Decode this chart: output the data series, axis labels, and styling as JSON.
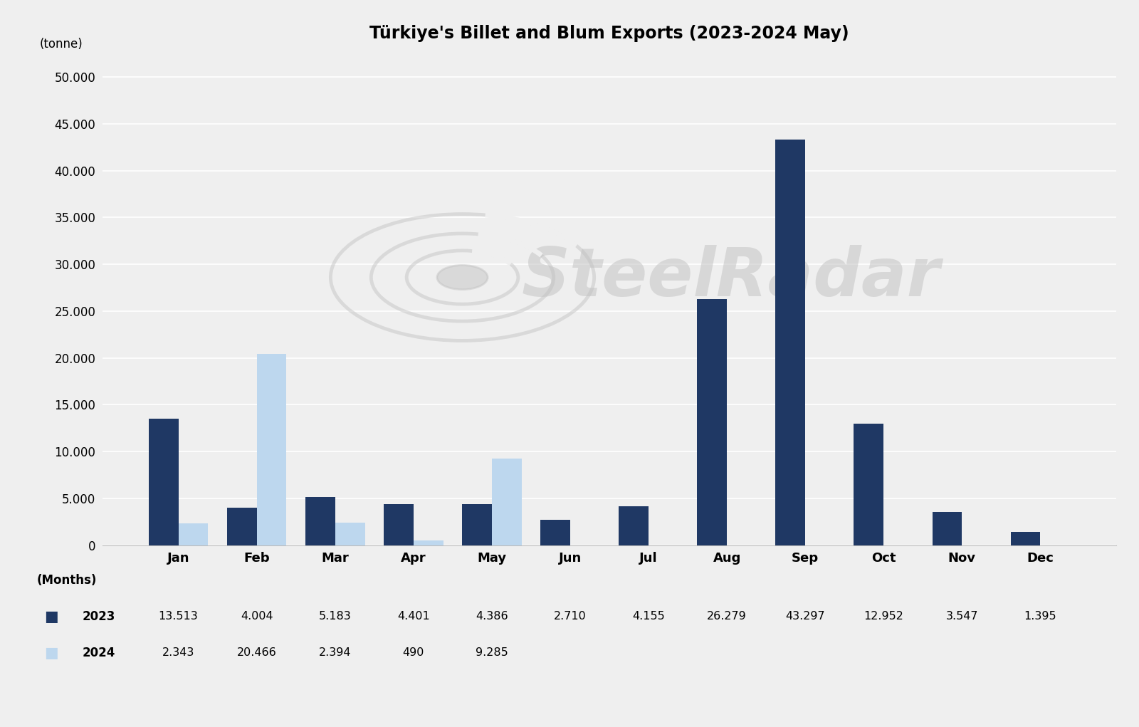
{
  "title": "Türkiye's Billet and Blum Exports (2023-2024 May)",
  "ylabel": "(tonne)",
  "xlabel": "(Months)",
  "months": [
    "Jan",
    "Feb",
    "Mar",
    "Apr",
    "May",
    "Jun",
    "Jul",
    "Aug",
    "Sep",
    "Oct",
    "Nov",
    "Dec"
  ],
  "data_2023": [
    13513,
    4004,
    5183,
    4401,
    4386,
    2710,
    4155,
    26279,
    43297,
    12952,
    3547,
    1395
  ],
  "data_2024": [
    2343,
    20466,
    2394,
    490,
    9285,
    0,
    0,
    0,
    0,
    0,
    0,
    0
  ],
  "color_2023": "#1F3864",
  "color_2024": "#BDD7EE",
  "yticks": [
    0,
    5000,
    10000,
    15000,
    20000,
    25000,
    30000,
    35000,
    40000,
    45000,
    50000
  ],
  "ytick_labels": [
    "0",
    "5.000",
    "10.000",
    "15.000",
    "20.000",
    "25.000",
    "30.000",
    "35.000",
    "40.000",
    "45.000",
    "50.000"
  ],
  "ylim": [
    0,
    52000
  ],
  "background_color": "#EFEFEF",
  "watermark_text": "SteelRadar",
  "table_2023": [
    "13.513",
    "4.004",
    "5.183",
    "4.401",
    "4.386",
    "2.710",
    "4.155",
    "26.279",
    "43.297",
    "12.952",
    "3.547",
    "1.395"
  ],
  "table_2024": [
    "2.343",
    "20.466",
    "2.394",
    "490",
    "9.285",
    "",
    "",
    "",
    "",
    "",
    "",
    ""
  ],
  "bar_width": 0.38
}
